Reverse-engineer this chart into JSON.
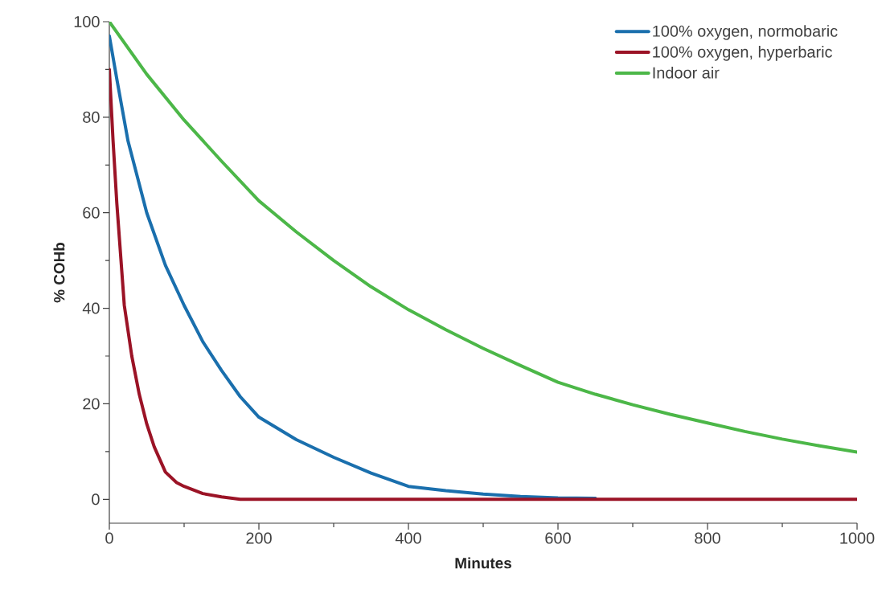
{
  "chart_data": {
    "type": "line",
    "xlabel": "Minutes",
    "ylabel": "% COHb",
    "xlim": [
      0,
      1000
    ],
    "ylim": [
      -5,
      100
    ],
    "xticks": [
      0,
      200,
      400,
      600,
      800,
      1000
    ],
    "yticks": [
      0,
      20,
      40,
      60,
      80,
      100
    ],
    "legend": "top right",
    "marker": "none",
    "line_style": "solid",
    "grid": false,
    "series": [
      {
        "name": "100% oxygen, normobaric",
        "color": "#1a6fad",
        "x": [
          0,
          10,
          25,
          50,
          75,
          100,
          125,
          150,
          175,
          200,
          250,
          300,
          350,
          400,
          450,
          500,
          550,
          600,
          650
        ],
        "values": [
          97,
          88,
          75,
          60,
          49,
          40.6,
          33,
          27,
          21.5,
          17.2,
          12.5,
          8.8,
          5.5,
          2.7,
          1.8,
          1.1,
          0.6,
          0.3,
          0.2
        ]
      },
      {
        "name": "100% oxygen, hyperbaric",
        "color": "#9b1326",
        "x": [
          0,
          5,
          10,
          20,
          30,
          40,
          50,
          60,
          75,
          90,
          100,
          125,
          150,
          175,
          200,
          400,
          600,
          800,
          1000
        ],
        "values": [
          90,
          75,
          62,
          40.6,
          30,
          22,
          15.8,
          11,
          5.7,
          3.5,
          2.7,
          1.2,
          0.5,
          0,
          0,
          0,
          0,
          0,
          0
        ]
      },
      {
        "name": "Indoor air",
        "color": "#4cb748",
        "x": [
          0,
          50,
          100,
          150,
          200,
          250,
          300,
          350,
          400,
          450,
          500,
          550,
          600,
          650,
          700,
          750,
          800,
          850,
          900,
          950,
          1000
        ],
        "values": [
          100,
          89,
          79.4,
          70.8,
          62.5,
          56,
          50,
          44.5,
          39.7,
          35.5,
          31.6,
          28,
          24.5,
          22,
          19.8,
          17.8,
          16,
          14.2,
          12.6,
          11.2,
          9.9
        ]
      }
    ]
  }
}
